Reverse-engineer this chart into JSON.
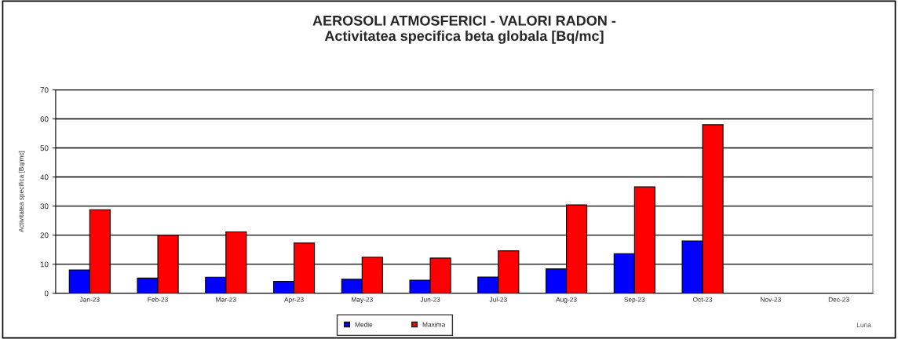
{
  "chart_data": {
    "type": "bar",
    "title": "AEROSOLI ATMOSFERICI - VALORI RADON -\nActivitatea specifica beta globala [Bq/mc]",
    "ylabel": "Activitatea specifica [Bq/mc]",
    "annotations": [
      "Luna"
    ],
    "categories": [
      "Jan-23",
      "Feb-23",
      "Mar-23",
      "Apr-23",
      "May-23",
      "Jun-23",
      "Jul-23",
      "Aug-23",
      "Sep-23",
      "Oct-23",
      "Nov-23",
      "Dec-23"
    ],
    "series": [
      {
        "name": "Medie",
        "color": "#0000ff",
        "values": [
          8.0,
          5.2,
          5.5,
          4.1,
          4.8,
          4.5,
          5.6,
          8.4,
          13.6,
          18.0,
          null,
          null
        ]
      },
      {
        "name": "Maxima",
        "color": "#ff0000",
        "values": [
          28.7,
          20.0,
          21.1,
          17.3,
          12.4,
          12.1,
          14.6,
          30.4,
          36.6,
          58.0,
          null,
          null
        ]
      }
    ],
    "ylim": [
      0,
      70
    ],
    "yticks": [
      0,
      10,
      20,
      30,
      40,
      50,
      60,
      70
    ],
    "grid": "y",
    "legend": "bottom"
  }
}
